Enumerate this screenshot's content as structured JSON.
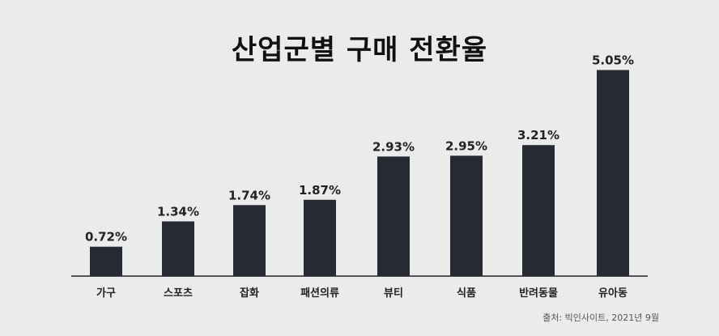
{
  "chart_data": {
    "type": "bar",
    "title": "산업군별 구매 전환율",
    "categories": [
      "가구",
      "스포츠",
      "잡화",
      "패션의류",
      "뷰티",
      "식품",
      "반려동물",
      "유아동"
    ],
    "values": [
      0.72,
      1.34,
      1.74,
      1.87,
      2.93,
      2.95,
      3.21,
      5.05
    ],
    "value_labels": [
      "0.72%",
      "1.34%",
      "1.74%",
      "1.87%",
      "2.93%",
      "2.95%",
      "3.21%",
      "5.05%"
    ],
    "xlabel": "",
    "ylabel": "",
    "ylim": [
      0,
      5.6
    ],
    "grid": false,
    "legend": "none",
    "bar_color": "#262a33"
  },
  "source": "출처: 빅인사이트, 2021년 9월"
}
